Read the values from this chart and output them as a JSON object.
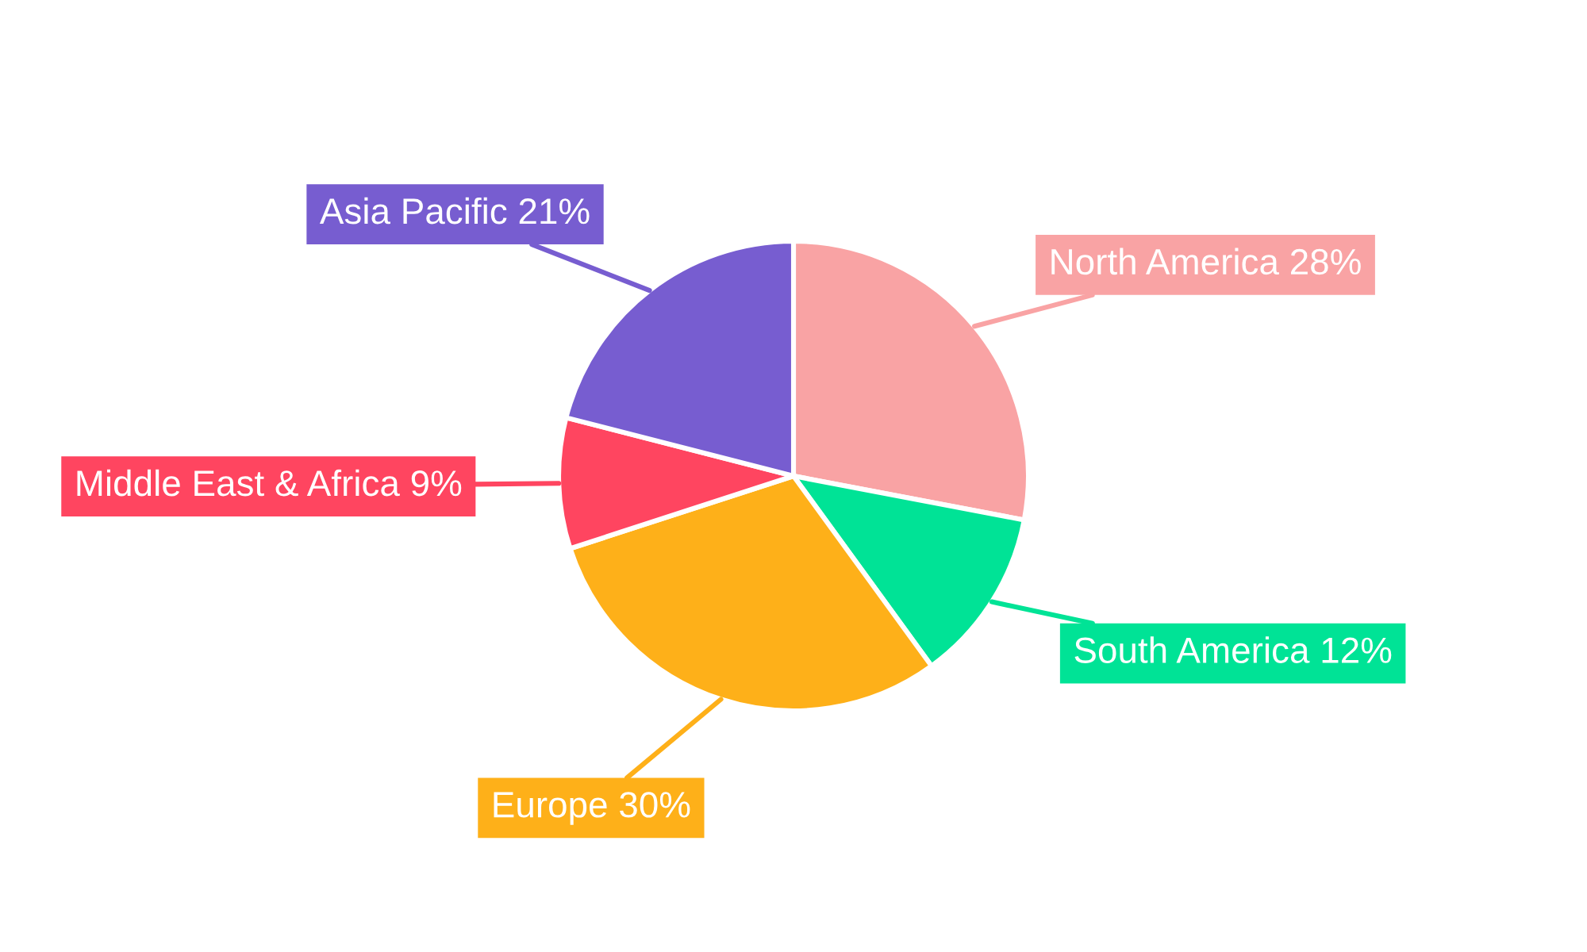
{
  "chart_data": {
    "type": "pie",
    "categories": [
      "North America",
      "South America",
      "Europe",
      "Middle East & Africa",
      "Asia Pacific"
    ],
    "values": [
      28,
      12,
      30,
      9,
      21
    ],
    "colors": [
      "#f9a3a4",
      "#00e396",
      "#feb019",
      "#ff4560",
      "#775dd0"
    ],
    "value_labels": [
      "28%",
      "12%",
      "30%",
      "9%",
      "21%"
    ]
  }
}
